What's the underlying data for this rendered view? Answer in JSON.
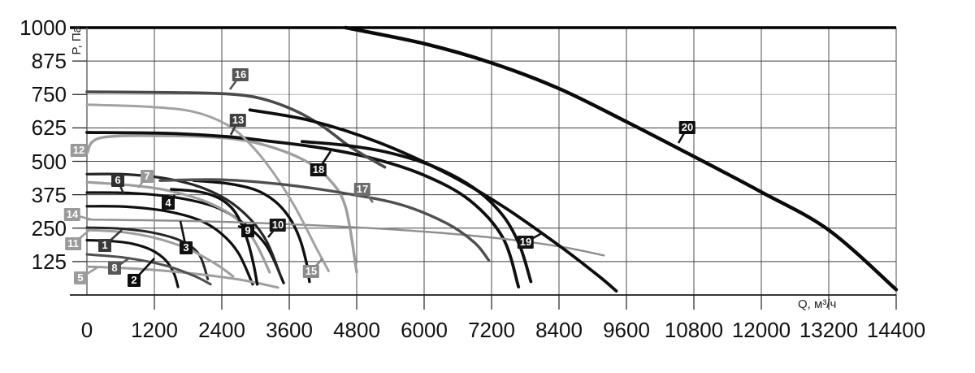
{
  "axes": {
    "y_title": "P, Па",
    "x_title": "Q, м³/ч"
  },
  "chart_data": {
    "type": "line",
    "title": "",
    "xlabel": "Q, м³/ч",
    "ylabel": "P, Па",
    "xlim": [
      0,
      14400
    ],
    "ylim": [
      0,
      1000
    ],
    "grid": true,
    "x_ticks": [
      0,
      1200,
      2400,
      3600,
      4800,
      6000,
      7200,
      8400,
      9600,
      10800,
      12000,
      13200,
      14400
    ],
    "y_ticks": [
      125,
      250,
      375,
      500,
      625,
      750,
      875,
      1000
    ],
    "grid_colors": {
      "h_normal": "#3f3f3f",
      "h_light": "#b5b5b5",
      "light_rows": [
        750
      ],
      "v": "#4d4d4d"
    },
    "series": [
      {
        "name": "1",
        "color": "#262626",
        "width": 3,
        "points": [
          [
            0,
            252
          ],
          [
            600,
            248
          ],
          [
            1200,
            232
          ],
          [
            1700,
            200
          ],
          [
            2000,
            150
          ],
          [
            2150,
            60
          ]
        ],
        "label": {
          "x": 129,
          "y": 302,
          "bg": "#3a3a3a",
          "tip": [
            150,
            283
          ]
        }
      },
      {
        "name": "2",
        "color": "#0f0f0f",
        "width": 3.1,
        "points": [
          [
            0,
            205
          ],
          [
            400,
            202
          ],
          [
            800,
            192
          ],
          [
            1150,
            168
          ],
          [
            1400,
            130
          ],
          [
            1550,
            80
          ],
          [
            1620,
            30
          ]
        ],
        "label": {
          "x": 165,
          "y": 345,
          "bg": "#0d0d0d",
          "tip": [
            190,
            318
          ]
        }
      },
      {
        "name": "3",
        "color": "#0f0f0f",
        "width": 3.2,
        "points": [
          [
            0,
            332
          ],
          [
            700,
            330
          ],
          [
            1400,
            314
          ],
          [
            2000,
            280
          ],
          [
            2400,
            228
          ],
          [
            2700,
            155
          ],
          [
            2950,
            40
          ]
        ],
        "label": {
          "x": 229,
          "y": 305,
          "bg": "#111111",
          "tip": [
            222,
            272
          ]
        }
      },
      {
        "name": "4",
        "color": "#0f0f0f",
        "width": 3.2,
        "points": [
          [
            0,
            383
          ],
          [
            800,
            381
          ],
          [
            1600,
            364
          ],
          [
            2300,
            328
          ],
          [
            2800,
            266
          ],
          [
            3200,
            182
          ],
          [
            3500,
            45
          ]
        ],
        "label": {
          "x": 207,
          "y": 250,
          "bg": "#111111",
          "tip": [
            215,
            240
          ]
        }
      },
      {
        "name": "5",
        "color": "#9e9e9e",
        "width": 3,
        "points": [
          [
            0,
            106
          ],
          [
            900,
            98
          ],
          [
            1800,
            82
          ],
          [
            2700,
            58
          ],
          [
            3400,
            28
          ]
        ],
        "label": {
          "x": 99,
          "y": 342,
          "bg": "#9c9c9c",
          "tip": [
            120,
            329
          ]
        }
      },
      {
        "name": "6",
        "color": "#262626",
        "width": 3.2,
        "points": [
          [
            0,
            452
          ],
          [
            700,
            451
          ],
          [
            1400,
            436
          ],
          [
            2000,
            405
          ],
          [
            2500,
            355
          ],
          [
            2900,
            285
          ],
          [
            3200,
            200
          ],
          [
            3450,
            70
          ]
        ],
        "label": {
          "x": 145,
          "y": 222,
          "bg": "#2f2f2f",
          "tip": [
            152,
            238
          ]
        }
      },
      {
        "name": "7",
        "color": "#9e9e9e",
        "width": 3.2,
        "points": [
          [
            0,
            422
          ],
          [
            800,
            410
          ],
          [
            1500,
            388
          ],
          [
            2200,
            342
          ],
          [
            2700,
            278
          ],
          [
            3000,
            195
          ],
          [
            3250,
            85
          ]
        ],
        "label": {
          "x": 181,
          "y": 217,
          "bg": "#999999",
          "tip": [
            170,
            231
          ]
        }
      },
      {
        "name": "8",
        "color": "#4f4f4f",
        "width": 3,
        "points": [
          [
            0,
            152
          ],
          [
            700,
            139
          ],
          [
            1400,
            110
          ],
          [
            1900,
            72
          ],
          [
            2200,
            40
          ]
        ],
        "label": {
          "x": 141,
          "y": 330,
          "bg": "#585858",
          "tip": [
            160,
            317
          ]
        }
      },
      {
        "name": "9",
        "color": "#0f0f0f",
        "width": 3.4,
        "points": [
          [
            1500,
            395
          ],
          [
            2000,
            386
          ],
          [
            2350,
            362
          ],
          [
            2600,
            320
          ],
          [
            2750,
            265
          ],
          [
            2870,
            195
          ],
          [
            2970,
            110
          ],
          [
            3030,
            40
          ]
        ],
        "label": {
          "x": 305,
          "y": 284,
          "bg": "#0d0d0d",
          "tip": [
            293,
            278
          ]
        }
      },
      {
        "name": "10",
        "color": "#0f0f0f",
        "width": 3.4,
        "points": [
          [
            1900,
            428
          ],
          [
            2500,
            417
          ],
          [
            3000,
            393
          ],
          [
            3350,
            350
          ],
          [
            3600,
            290
          ],
          [
            3780,
            215
          ],
          [
            3900,
            125
          ],
          [
            3960,
            50
          ]
        ],
        "label": {
          "x": 342,
          "y": 277,
          "bg": "#161616",
          "tip": [
            330,
            292
          ]
        }
      },
      {
        "name": "11",
        "color": "#9e9e9e",
        "width": 3,
        "points": [
          [
            0,
            243
          ],
          [
            600,
            236
          ],
          [
            1200,
            214
          ],
          [
            1800,
            172
          ],
          [
            2300,
            115
          ],
          [
            2600,
            70
          ]
        ],
        "label": {
          "x": 90,
          "y": 300,
          "bg": "#9a9a9a",
          "tip": [
            109,
            284
          ]
        }
      },
      {
        "name": "12",
        "color": "#9e9e9e",
        "width": 3.4,
        "points": [
          [
            0,
            530
          ],
          [
            250,
            588
          ],
          [
            1500,
            595
          ],
          [
            2600,
            584
          ],
          [
            3300,
            552
          ],
          [
            3900,
            500
          ],
          [
            4300,
            435
          ],
          [
            4600,
            330
          ],
          [
            4800,
            85
          ]
        ],
        "label": {
          "x": 97,
          "y": 185,
          "bg": "#9a9a9a",
          "tip": [
            110,
            180
          ]
        }
      },
      {
        "name": "13",
        "color": "#0f0f0f",
        "width": 3.8,
        "points": [
          [
            0,
            608
          ],
          [
            1400,
            605
          ],
          [
            2500,
            592
          ],
          [
            3300,
            574
          ],
          [
            4200,
            549
          ],
          [
            5100,
            510
          ],
          [
            6000,
            448
          ],
          [
            6800,
            356
          ],
          [
            7400,
            215
          ],
          [
            7680,
            30
          ]
        ],
        "label": {
          "x": 293,
          "y": 148,
          "bg": "#3f3f3f",
          "tip": [
            284,
            166
          ]
        }
      },
      {
        "name": "14",
        "color": "#8f8f8f",
        "width": 2.4,
        "points": [
          [
            0,
            282
          ],
          [
            2000,
            276
          ],
          [
            4000,
            261
          ],
          [
            6000,
            237
          ],
          [
            7500,
            208
          ],
          [
            8500,
            178
          ],
          [
            9200,
            148
          ]
        ],
        "label": {
          "x": 89,
          "y": 264,
          "bg": "#9a9a9a",
          "tip": [
            112,
            270
          ]
        }
      },
      {
        "name": "15",
        "color": "#a2a2a2",
        "width": 3,
        "points": [
          [
            0,
            712
          ],
          [
            1100,
            704
          ],
          [
            1900,
            685
          ],
          [
            2500,
            636
          ],
          [
            2900,
            565
          ],
          [
            3300,
            462
          ],
          [
            3700,
            330
          ],
          [
            4100,
            168
          ],
          [
            4300,
            90
          ]
        ],
        "label": {
          "x": 383,
          "y": 334,
          "bg": "#8a8a8a",
          "tip": [
            397,
            318
          ]
        }
      },
      {
        "name": "16",
        "color": "#4a4a4a",
        "width": 3.6,
        "points": [
          [
            0,
            760
          ],
          [
            1600,
            757
          ],
          [
            2500,
            752
          ],
          [
            3100,
            735
          ],
          [
            3700,
            690
          ],
          [
            4200,
            630
          ],
          [
            4700,
            552
          ],
          [
            5300,
            478
          ]
        ],
        "label": {
          "x": 296,
          "y": 92,
          "bg": "#555555",
          "tip": [
            283,
            110
          ]
        }
      },
      {
        "name": "17",
        "color": "#4f4f4f",
        "width": 3.4,
        "points": [
          [
            1300,
            428
          ],
          [
            2400,
            431
          ],
          [
            3500,
            413
          ],
          [
            4600,
            380
          ],
          [
            5600,
            337
          ],
          [
            6400,
            268
          ],
          [
            6900,
            195
          ],
          [
            7150,
            130
          ]
        ],
        "label": {
          "x": 446,
          "y": 233,
          "bg": "#6e6e6e",
          "tip": [
            459,
            249
          ]
        }
      },
      {
        "name": "18",
        "color": "#0f0f0f",
        "width": 3.8,
        "points": [
          [
            3830,
            574
          ],
          [
            4600,
            560
          ],
          [
            5400,
            531
          ],
          [
            6200,
            478
          ],
          [
            6900,
            398
          ],
          [
            7400,
            298
          ],
          [
            7700,
            185
          ],
          [
            7900,
            50
          ]
        ],
        "label": {
          "x": 392,
          "y": 209,
          "bg": "#101010",
          "tip": [
            407,
            186
          ]
        }
      },
      {
        "name": "19",
        "color": "#0d0d0d",
        "width": 3.8,
        "points": [
          [
            2900,
            692
          ],
          [
            4000,
            651
          ],
          [
            5200,
            570
          ],
          [
            6400,
            455
          ],
          [
            7400,
            332
          ],
          [
            8400,
            185
          ],
          [
            9100,
            72
          ],
          [
            9420,
            15
          ]
        ],
        "label": {
          "x": 647,
          "y": 298,
          "bg": "#141414",
          "tip": [
            667,
            287
          ]
        }
      },
      {
        "name": "20",
        "color": "#0a0a0a",
        "width": 4.4,
        "points": [
          [
            4600,
            1000
          ],
          [
            6000,
            940
          ],
          [
            7200,
            868
          ],
          [
            8400,
            772
          ],
          [
            9600,
            648
          ],
          [
            10800,
            518
          ],
          [
            12000,
            385
          ],
          [
            13200,
            243
          ],
          [
            14400,
            20
          ]
        ],
        "label": {
          "x": 846,
          "y": 157,
          "bg": "#0f0f0f",
          "tip": [
            835,
            176
          ]
        }
      }
    ]
  }
}
